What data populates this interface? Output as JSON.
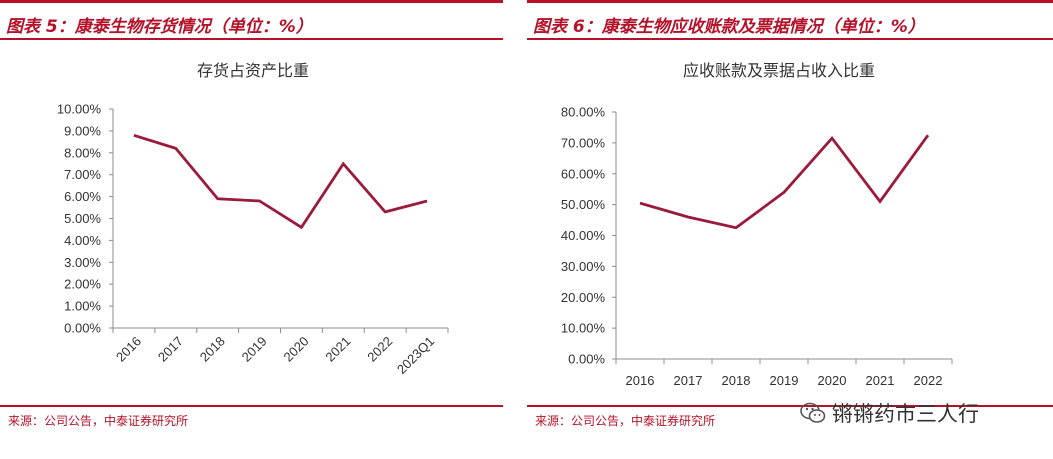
{
  "panels": [
    {
      "caption": "图表 5：康泰生物存货情况（单位：%）",
      "source": "来源：公司公告，中泰证券研究所"
    },
    {
      "caption": "图表 6：康泰生物应收账款及票据情况（单位：%）",
      "source": "来源：公司公告，中泰证券研究所"
    }
  ],
  "colors": {
    "accent": "#b5122a",
    "series": "#9b1b3c",
    "axis": "#8c8c8c"
  },
  "watermark": {
    "text": "锵锵药市三人行",
    "icon": "wechat-chat-icon"
  },
  "chart_data": [
    {
      "type": "line",
      "title": "存货占资产比重",
      "categories": [
        "2016",
        "2017",
        "2018",
        "2019",
        "2020",
        "2021",
        "2022",
        "2023Q1"
      ],
      "series": [
        {
          "values": [
            8.8,
            8.2,
            5.9,
            5.8,
            4.6,
            7.5,
            5.3,
            5.8
          ]
        }
      ],
      "ylim": [
        0,
        10
      ],
      "yticks": [
        "0.00%",
        "1.00%",
        "2.00%",
        "3.00%",
        "4.00%",
        "5.00%",
        "6.00%",
        "7.00%",
        "8.00%",
        "9.00%",
        "10.00%"
      ],
      "xlabel": "",
      "ylabel": "",
      "grid": false,
      "xtick_rotation": -45
    },
    {
      "type": "line",
      "title": "应收账款及票据占收入比重",
      "categories": [
        "2016",
        "2017",
        "2018",
        "2019",
        "2020",
        "2021",
        "2022"
      ],
      "series": [
        {
          "values": [
            50.5,
            46.0,
            42.5,
            54.0,
            71.5,
            51.0,
            72.5
          ]
        }
      ],
      "ylim": [
        0,
        80
      ],
      "yticks": [
        "0.00%",
        "10.00%",
        "20.00%",
        "30.00%",
        "40.00%",
        "50.00%",
        "60.00%",
        "70.00%",
        "80.00%"
      ],
      "xlabel": "",
      "ylabel": "",
      "grid": false,
      "xtick_rotation": 0
    }
  ]
}
